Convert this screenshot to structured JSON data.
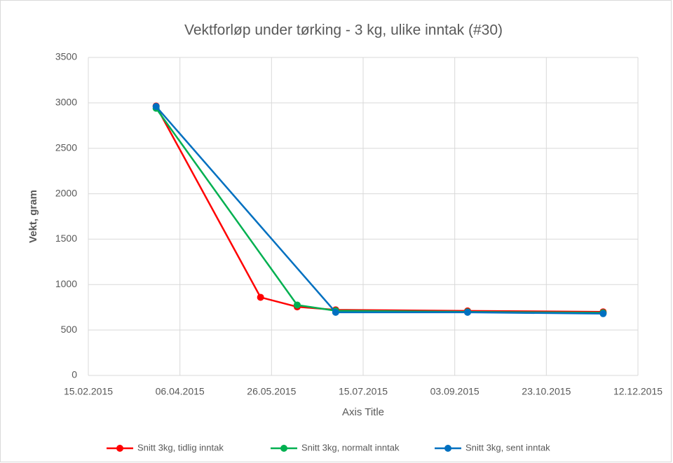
{
  "chart_data": {
    "type": "line",
    "title": "Vektforløp under tørking - 3 kg, ulike inntak (#30)",
    "xlabel": "Axis Title",
    "ylabel": "Vekt, gram",
    "xlim": [
      "15.02.2015",
      "12.12.2015"
    ],
    "xticks": [
      "15.02.2015",
      "06.04.2015",
      "26.05.2015",
      "15.07.2015",
      "03.09.2015",
      "23.10.2015",
      "12.12.2015"
    ],
    "ylim": [
      0,
      3500
    ],
    "yticks": [
      0,
      500,
      1000,
      1500,
      2000,
      2500,
      3000,
      3500
    ],
    "grid": true,
    "legend": "bottom",
    "series": [
      {
        "name": "Snitt 3kg, tidlig inntak",
        "color": "#ff0000",
        "x": [
          "24.03.2015",
          "20.05.2015",
          "09.06.2015",
          "30.06.2015",
          "10.09.2015",
          "23.11.2015"
        ],
        "values": [
          2965,
          860,
          755,
          722,
          710,
          700
        ]
      },
      {
        "name": "Snitt 3kg, normalt inntak",
        "color": "#00b050",
        "x": [
          "24.03.2015",
          "09.06.2015",
          "30.06.2015",
          "10.09.2015",
          "23.11.2015"
        ],
        "values": [
          2940,
          775,
          712,
          700,
          690
        ]
      },
      {
        "name": "Snitt 3kg, sent inntak",
        "color": "#0070c0",
        "x": [
          "24.03.2015",
          "30.06.2015",
          "10.09.2015",
          "23.11.2015"
        ],
        "values": [
          2960,
          695,
          695,
          680
        ]
      }
    ]
  }
}
